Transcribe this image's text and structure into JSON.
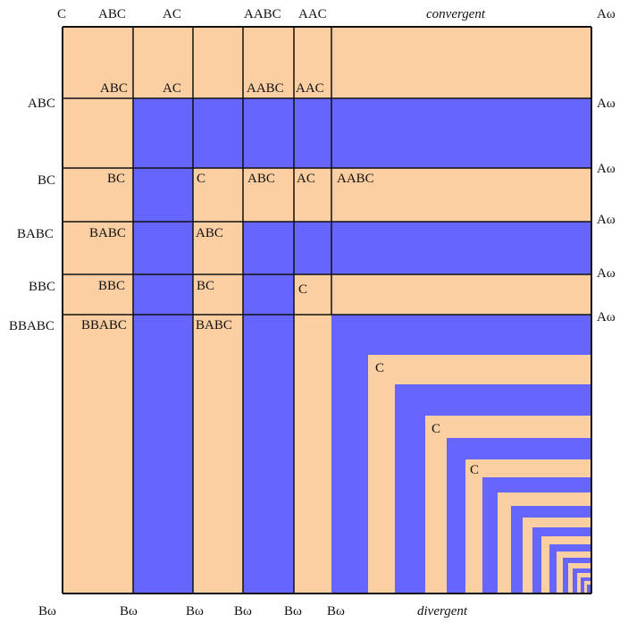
{
  "colors": {
    "peach": "#fbcfa2",
    "blue": "#6666ff",
    "line": "#111111",
    "text": "#111111"
  },
  "top_labels": {
    "c": "C",
    "abc": "ABC",
    "ac": "AC",
    "aabc": "AABC",
    "aac": "AAC",
    "convergent": "convergent",
    "a_omega": "Aω"
  },
  "row_labels": {
    "abc": "ABC",
    "bc": "BC",
    "babc": "BABC",
    "bbc": "BBC",
    "bbabc": "BBABC",
    "a_omega": "Aω"
  },
  "bottom_labels": {
    "b_omega": "Bω",
    "divergent": "divergent"
  },
  "cell_labels": {
    "abc": "ABC",
    "ac": "AC",
    "aabc": "AABC",
    "aac": "AAC",
    "bc": "BC",
    "c": "C",
    "babc": "BABC",
    "bbc": "BBC",
    "bbabc": "BBABC"
  }
}
